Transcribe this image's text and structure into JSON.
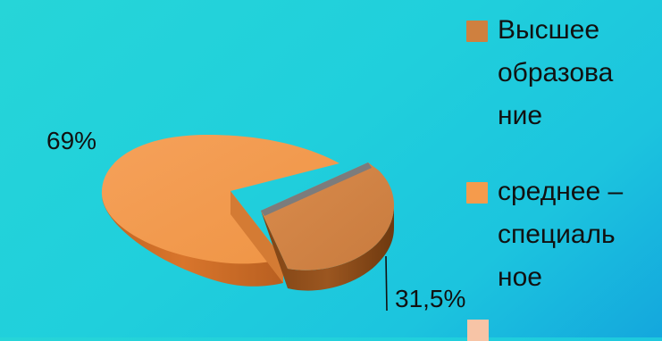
{
  "chart_data": {
    "type": "pie",
    "slices": [
      {
        "label_lines": [
          "Высшее",
          "образова",
          "ние"
        ],
        "value": 31.5,
        "value_label": "31,5%",
        "color": "#cf803f",
        "side_color": "#8c4d18",
        "top_color": "#d7894b"
      },
      {
        "label_lines": [
          "среднее –",
          "специаль",
          "ное"
        ],
        "value": 69,
        "value_label": "69%",
        "color": "#f59b4c",
        "side_color": "#c86a25",
        "top_color": "#f39b4b"
      }
    ],
    "legend_position": "right",
    "extra_legend_color": "#f7c4a6",
    "accent_color": "#7c7c7c"
  }
}
